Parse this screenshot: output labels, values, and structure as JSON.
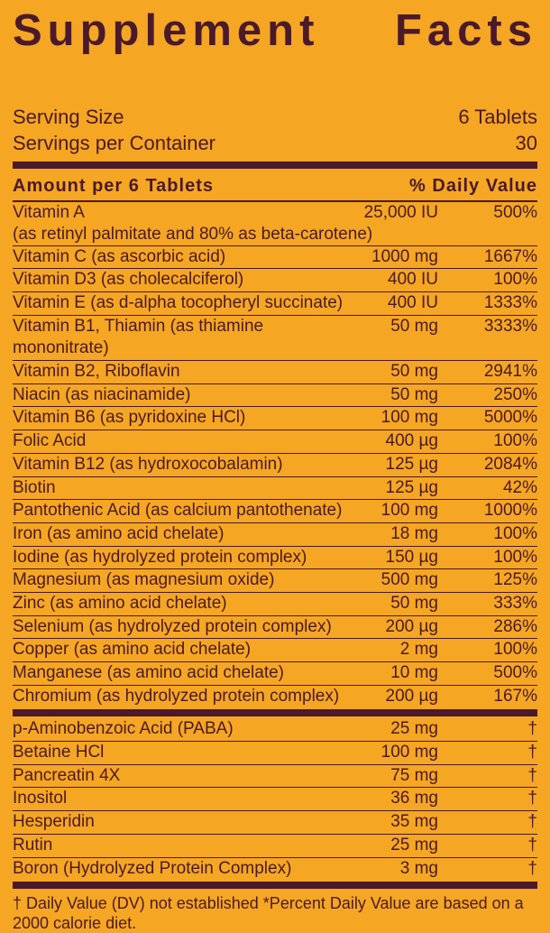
{
  "title": "Supplement Facts",
  "serving_size_label": "Serving Size",
  "serving_size_value": "6 Tablets",
  "servings_per_label": "Servings per  Container",
  "servings_per_value": "30",
  "header_left": "Amount per 6 Tablets",
  "header_right": "% Daily Value",
  "vitamin_a_name": "Vitamin A",
  "vitamin_a_amt": "25,000 IU",
  "vitamin_a_dv": "500%",
  "vitamin_a_sub": "(as retinyl palmitate and 80% as beta-carotene)",
  "nutrients_main": [
    {
      "name": "Vitamin C (as ascorbic acid)",
      "amt": "1000 mg",
      "dv": "1667%"
    },
    {
      "name": "Vitamin D3 (as cholecalciferol)",
      "amt": "400 IU",
      "dv": "100%"
    },
    {
      "name": "Vitamin E (as d-alpha tocopheryl succinate)",
      "amt": "400 IU",
      "dv": "1333%"
    },
    {
      "name": "Vitamin B1, Thiamin (as thiamine mononitrate)",
      "amt": "50 mg",
      "dv": "3333%"
    },
    {
      "name": "Vitamin B2, Riboflavin",
      "amt": "50 mg",
      "dv": "2941%"
    },
    {
      "name": "Niacin (as niacinamide)",
      "amt": "50 mg",
      "dv": "250%"
    },
    {
      "name": "Vitamin B6 (as pyridoxine HCl)",
      "amt": "100 mg",
      "dv": "5000%"
    },
    {
      "name": "Folic Acid",
      "amt": "400 µg",
      "dv": "100%"
    },
    {
      "name": "Vitamin B12 (as hydroxocobalamin)",
      "amt": "125 µg",
      "dv": "2084%"
    },
    {
      "name": "Biotin",
      "amt": "125 µg",
      "dv": "42%"
    },
    {
      "name": "Pantothenic Acid (as calcium pantothenate)",
      "amt": "100 mg",
      "dv": "1000%"
    },
    {
      "name": "Iron (as amino acid chelate)",
      "amt": "18 mg",
      "dv": "100%"
    },
    {
      "name": "Iodine (as hydrolyzed protein complex)",
      "amt": "150 µg",
      "dv": "100%"
    },
    {
      "name": "Magnesium (as magnesium oxide)",
      "amt": "500 mg",
      "dv": "125%"
    },
    {
      "name": "Zinc (as amino acid chelate)",
      "amt": "50 mg",
      "dv": "333%"
    },
    {
      "name": "Selenium (as hydrolyzed protein complex)",
      "amt": "200 µg",
      "dv": "286%"
    },
    {
      "name": "Copper (as amino acid chelate)",
      "amt": "2 mg",
      "dv": "100%"
    },
    {
      "name": "Manganese (as amino acid chelate)",
      "amt": "10 mg",
      "dv": "500%"
    },
    {
      "name": "Chromium (as hydrolyzed protein complex)",
      "amt": "200 µg",
      "dv": "167%"
    }
  ],
  "nutrients_secondary": [
    {
      "name": "p-Aminobenzoic Acid (PABA)",
      "amt": "25 mg",
      "dv": "†"
    },
    {
      "name": "Betaine HCl",
      "amt": "100 mg",
      "dv": "†"
    },
    {
      "name": "Pancreatin 4X",
      "amt": "75 mg",
      "dv": "†"
    },
    {
      "name": "Inositol",
      "amt": "36 mg",
      "dv": "†"
    },
    {
      "name": "Hesperidin",
      "amt": "35 mg",
      "dv": "†"
    },
    {
      "name": "Rutin",
      "amt": "25 mg",
      "dv": "†"
    },
    {
      "name": "Boron (Hydrolyzed Protein Complex)",
      "amt": "3 mg",
      "dv": "†"
    }
  ],
  "footnote": "† Daily Value (DV) not established  *Percent Daily Value are based on a 2000 calorie diet.",
  "colors": {
    "background": "#f5a623",
    "text": "#4a1a2a"
  }
}
